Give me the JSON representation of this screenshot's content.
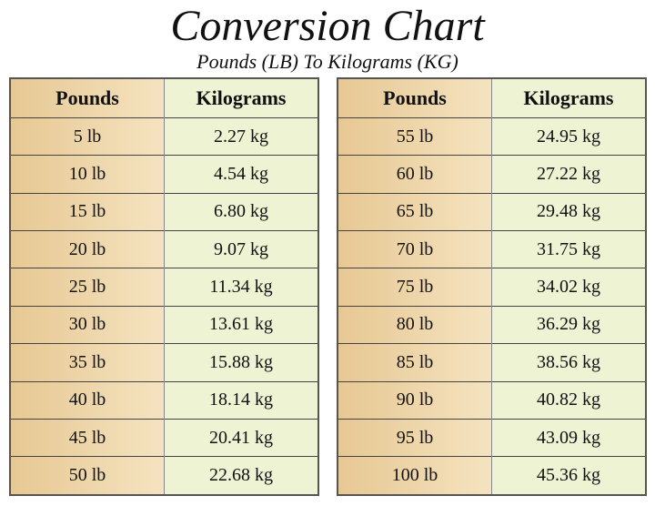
{
  "header": {
    "title": "Conversion Chart",
    "subtitle": "Pounds (LB) To Kilograms (KG)"
  },
  "tables": [
    {
      "headers": [
        "Pounds",
        "Kilograms"
      ],
      "rows": [
        [
          "5 lb",
          "2.27 kg"
        ],
        [
          "10 lb",
          "4.54 kg"
        ],
        [
          "15 lb",
          "6.80 kg"
        ],
        [
          "20 lb",
          "9.07 kg"
        ],
        [
          "25 lb",
          "11.34 kg"
        ],
        [
          "30 lb",
          "13.61 kg"
        ],
        [
          "35 lb",
          "15.88 kg"
        ],
        [
          "40 lb",
          "18.14 kg"
        ],
        [
          "45 lb",
          "20.41 kg"
        ],
        [
          "50 lb",
          "22.68 kg"
        ]
      ]
    },
    {
      "headers": [
        "Pounds",
        "Kilograms"
      ],
      "rows": [
        [
          "55 lb",
          "24.95 kg"
        ],
        [
          "60 lb",
          "27.22 kg"
        ],
        [
          "65 lb",
          "29.48 kg"
        ],
        [
          "70 lb",
          "31.75 kg"
        ],
        [
          "75 lb",
          "34.02 kg"
        ],
        [
          "80 lb",
          "36.29 kg"
        ],
        [
          "85 lb",
          "38.56 kg"
        ],
        [
          "90 lb",
          "40.82 kg"
        ],
        [
          "95 lb",
          "43.09 kg"
        ],
        [
          "100 lb",
          "45.36 kg"
        ]
      ]
    }
  ]
}
